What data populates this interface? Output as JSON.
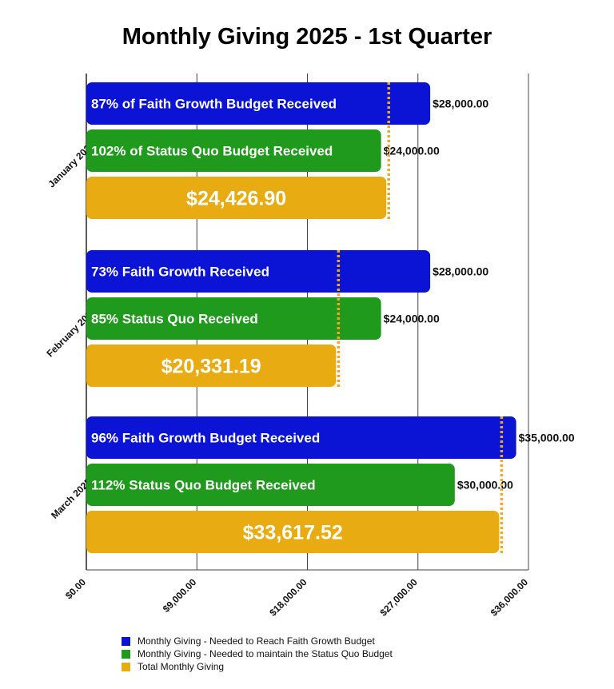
{
  "chart_data": {
    "type": "bar",
    "orientation": "horizontal",
    "title": "Monthly Giving 2025 - 1st Quarter",
    "xlabel": "",
    "ylabel": "",
    "xlim": [
      0,
      36000
    ],
    "x_ticks": [
      "$0.00",
      "$9,000.00",
      "$18,000.00",
      "$27,000.00",
      "$36,000.00"
    ],
    "x_tick_values": [
      0,
      9000,
      18000,
      27000,
      36000
    ],
    "grid": "vertical",
    "legend_position": "bottom",
    "categories": [
      "January 2025",
      "February 2025",
      "March 2025"
    ],
    "series": [
      {
        "name": "Monthly Giving - Needed to Reach Faith Growth Budget",
        "color": "#0b14d4",
        "values": [
          28000,
          28000,
          35000
        ],
        "value_labels": [
          "$28,000.00",
          "$28,000.00",
          "$35,000.00"
        ],
        "bar_labels": [
          "87% of Faith Growth Budget Received",
          "73% Faith Growth  Received",
          "96% Faith Growth Budget Received"
        ]
      },
      {
        "name": "Monthly Giving - Needed to maintain the Status Quo Budget",
        "color": "#1f9a1d",
        "values": [
          24000,
          24000,
          30000
        ],
        "value_labels": [
          "$24,000.00",
          "$24,000.00",
          "$30,000.00"
        ],
        "bar_labels": [
          "102% of Status Quo Budget Received",
          "85% Status Quo Received",
          "112% Status Quo Budget Received"
        ]
      },
      {
        "name": "Total Monthly Giving",
        "color": "#e8ac12",
        "values": [
          24426.9,
          20331.19,
          33617.52
        ],
        "bar_labels": [
          "$24,426.90",
          "$20,331.19",
          "$33,617.52"
        ]
      }
    ],
    "annotations": {
      "dotted_line_color": "#f0a820",
      "dotted_lines_at_total": true
    }
  }
}
